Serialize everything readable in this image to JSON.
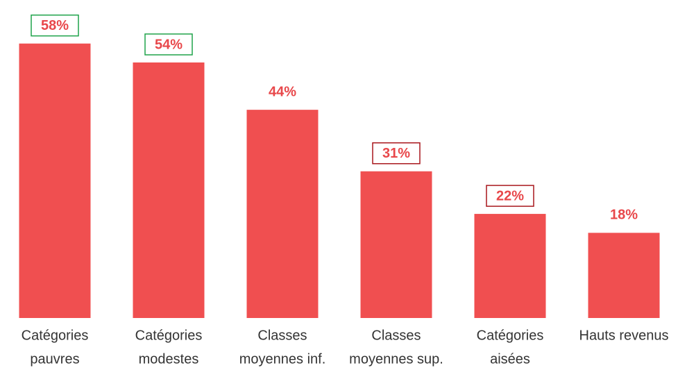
{
  "chart_data": {
    "type": "bar",
    "categories": [
      [
        "Catégories",
        "pauvres"
      ],
      [
        "Catégories",
        "modestes"
      ],
      [
        "Classes",
        "moyennes inf."
      ],
      [
        "Classes",
        "moyennes sup."
      ],
      [
        "Catégories",
        "aisées"
      ],
      [
        "Hauts revenus"
      ]
    ],
    "values": [
      58,
      54,
      44,
      31,
      22,
      18
    ],
    "value_labels": [
      "58%",
      "54%",
      "44%",
      "31%",
      "22%",
      "18%"
    ],
    "label_box_colors": [
      "#1fa34a",
      "#1fa34a",
      null,
      "#a8161c",
      "#a8161c",
      null
    ],
    "color": "#f04f50",
    "ylim": [
      0,
      65
    ]
  }
}
